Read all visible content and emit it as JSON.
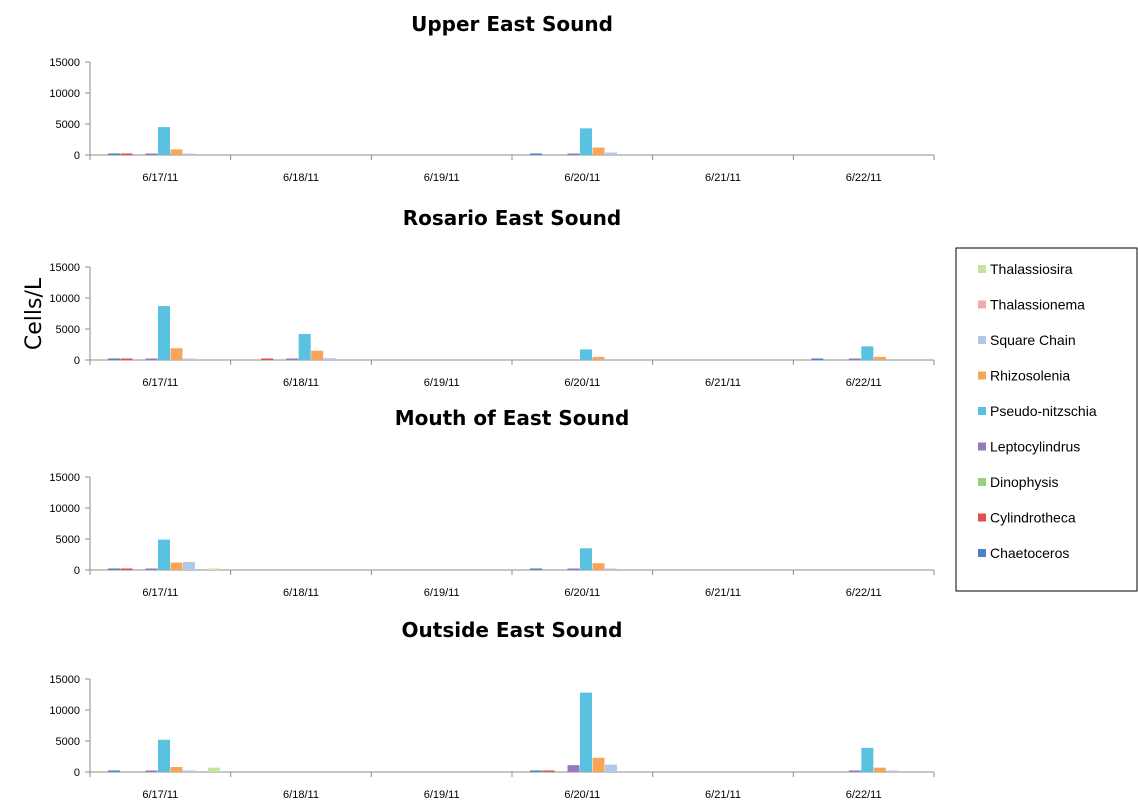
{
  "colors": {
    "Thalassiosira": "#c6e5a3",
    "Thalassionema": "#f2aaa9",
    "Square Chain": "#b3c7ea",
    "Rhizosolenia": "#f6a55b",
    "Pseudo-nitzschia": "#59c2e0",
    "Leptocylindrus": "#9877be",
    "Dinophysis": "#9ed07b",
    "Cylindrotheca": "#e24e4e",
    "Chaetoceros": "#4f81c6"
  },
  "chart_data": {
    "type": "bar",
    "ylabel": "Cells/L",
    "ylim": [
      0,
      15000
    ],
    "yticks": [
      0,
      5000,
      10000,
      15000
    ],
    "categories": [
      "6/17/11",
      "6/18/11",
      "6/19/11",
      "6/20/11",
      "6/21/11",
      "6/22/11"
    ],
    "series_order": [
      "Chaetoceros",
      "Cylindrotheca",
      "Dinophysis",
      "Leptocylindrus",
      "Pseudo-nitzschia",
      "Rhizosolenia",
      "Square Chain",
      "Thalassionema",
      "Thalassiosira"
    ],
    "legend": [
      "Thalassiosira",
      "Thalassionema",
      "Square Chain",
      "Rhizosolenia",
      "Pseudo-nitzschia",
      "Leptocylindrus",
      "Dinophysis",
      "Cylindrotheca",
      "Chaetoceros"
    ],
    "legend_position": "right",
    "charts": [
      {
        "title": "Upper East Sound",
        "series": [
          {
            "name": "Chaetoceros",
            "values": [
              50,
              0,
              0,
              100,
              0,
              0
            ]
          },
          {
            "name": "Cylindrotheca",
            "values": [
              100,
              0,
              0,
              0,
              0,
              0
            ]
          },
          {
            "name": "Dinophysis",
            "values": [
              0,
              0,
              0,
              0,
              0,
              0
            ]
          },
          {
            "name": "Leptocylindrus",
            "values": [
              150,
              0,
              0,
              150,
              0,
              0
            ]
          },
          {
            "name": "Pseudo-nitzschia",
            "values": [
              4500,
              0,
              0,
              4300,
              0,
              0
            ]
          },
          {
            "name": "Rhizosolenia",
            "values": [
              900,
              0,
              0,
              1200,
              0,
              0
            ]
          },
          {
            "name": "Square Chain",
            "values": [
              100,
              0,
              0,
              400,
              0,
              0
            ]
          },
          {
            "name": "Thalassionema",
            "values": [
              0,
              0,
              0,
              0,
              0,
              0
            ]
          },
          {
            "name": "Thalassiosira",
            "values": [
              0,
              0,
              0,
              0,
              0,
              0
            ]
          }
        ]
      },
      {
        "title": "Rosario East Sound",
        "series": [
          {
            "name": "Chaetoceros",
            "values": [
              100,
              0,
              0,
              0,
              0,
              100
            ]
          },
          {
            "name": "Cylindrotheca",
            "values": [
              100,
              100,
              0,
              0,
              0,
              0
            ]
          },
          {
            "name": "Dinophysis",
            "values": [
              0,
              0,
              0,
              0,
              0,
              0
            ]
          },
          {
            "name": "Leptocylindrus",
            "values": [
              100,
              100,
              0,
              0,
              0,
              100
            ]
          },
          {
            "name": "Pseudo-nitzschia",
            "values": [
              8700,
              4200,
              0,
              1700,
              0,
              2200
            ]
          },
          {
            "name": "Rhizosolenia",
            "values": [
              1900,
              1500,
              0,
              500,
              0,
              500
            ]
          },
          {
            "name": "Square Chain",
            "values": [
              100,
              300,
              0,
              0,
              0,
              0
            ]
          },
          {
            "name": "Thalassionema",
            "values": [
              0,
              0,
              0,
              0,
              0,
              0
            ]
          },
          {
            "name": "Thalassiosira",
            "values": [
              0,
              0,
              0,
              0,
              0,
              0
            ]
          }
        ]
      },
      {
        "title": "Mouth of East Sound",
        "series": [
          {
            "name": "Chaetoceros",
            "values": [
              100,
              0,
              0,
              100,
              0,
              0
            ]
          },
          {
            "name": "Cylindrotheca",
            "values": [
              100,
              0,
              0,
              0,
              0,
              0
            ]
          },
          {
            "name": "Dinophysis",
            "values": [
              0,
              0,
              0,
              0,
              0,
              0
            ]
          },
          {
            "name": "Leptocylindrus",
            "values": [
              100,
              0,
              0,
              100,
              0,
              0
            ]
          },
          {
            "name": "Pseudo-nitzschia",
            "values": [
              4900,
              0,
              0,
              3500,
              0,
              0
            ]
          },
          {
            "name": "Rhizosolenia",
            "values": [
              1200,
              0,
              0,
              1100,
              0,
              0
            ]
          },
          {
            "name": "Square Chain",
            "values": [
              1300,
              0,
              0,
              100,
              0,
              0
            ]
          },
          {
            "name": "Thalassionema",
            "values": [
              0,
              0,
              0,
              0,
              0,
              0
            ]
          },
          {
            "name": "Thalassiosira",
            "values": [
              100,
              0,
              0,
              0,
              0,
              0
            ]
          }
        ]
      },
      {
        "title": "Outside East Sound",
        "series": [
          {
            "name": "Chaetoceros",
            "values": [
              100,
              0,
              0,
              100,
              0,
              0
            ]
          },
          {
            "name": "Cylindrotheca",
            "values": [
              0,
              0,
              0,
              100,
              0,
              0
            ]
          },
          {
            "name": "Dinophysis",
            "values": [
              0,
              0,
              0,
              0,
              0,
              0
            ]
          },
          {
            "name": "Leptocylindrus",
            "values": [
              100,
              0,
              0,
              1100,
              0,
              100
            ]
          },
          {
            "name": "Pseudo-nitzschia",
            "values": [
              5200,
              0,
              0,
              12800,
              0,
              3900
            ]
          },
          {
            "name": "Rhizosolenia",
            "values": [
              800,
              0,
              0,
              2300,
              0,
              700
            ]
          },
          {
            "name": "Square Chain",
            "values": [
              100,
              0,
              0,
              1200,
              0,
              100
            ]
          },
          {
            "name": "Thalassionema",
            "values": [
              0,
              0,
              0,
              0,
              0,
              0
            ]
          },
          {
            "name": "Thalassiosira",
            "values": [
              700,
              0,
              0,
              0,
              0,
              0
            ]
          }
        ]
      }
    ]
  }
}
